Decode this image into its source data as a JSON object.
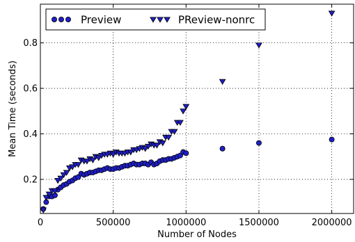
{
  "chart_data": {
    "type": "scatter",
    "xlabel": "Number of Nodes",
    "ylabel": "Mean Time (seconds)",
    "xlim": [
      0,
      2150000
    ],
    "ylim": [
      0.05,
      0.97
    ],
    "xticks": [
      0,
      500000,
      1000000,
      1500000,
      2000000
    ],
    "xtick_labels": [
      "0",
      "500000",
      "1000000",
      "1500000",
      "2000000"
    ],
    "yticks": [
      0.2,
      0.4,
      0.6,
      0.8
    ],
    "ytick_labels": [
      "0.2",
      "0.4",
      "0.6",
      "0.8"
    ],
    "grid": "dotted",
    "legend_placement": "top-left",
    "series": [
      {
        "name": "Preview",
        "marker": "circle",
        "color": "#1f1fc8",
        "x": [
          20000,
          40000,
          60000,
          80000,
          100000,
          120000,
          140000,
          160000,
          180000,
          200000,
          220000,
          240000,
          260000,
          280000,
          300000,
          320000,
          340000,
          360000,
          380000,
          400000,
          420000,
          440000,
          460000,
          480000,
          500000,
          520000,
          540000,
          560000,
          580000,
          600000,
          620000,
          640000,
          660000,
          680000,
          700000,
          720000,
          740000,
          760000,
          780000,
          800000,
          820000,
          840000,
          860000,
          880000,
          900000,
          920000,
          940000,
          960000,
          980000,
          1000000,
          1250000,
          1500000,
          2000000
        ],
        "y": [
          0.07,
          0.1,
          0.125,
          0.125,
          0.13,
          0.155,
          0.165,
          0.175,
          0.18,
          0.19,
          0.195,
          0.205,
          0.21,
          0.225,
          0.22,
          0.225,
          0.23,
          0.23,
          0.235,
          0.24,
          0.24,
          0.245,
          0.25,
          0.245,
          0.245,
          0.25,
          0.25,
          0.255,
          0.26,
          0.26,
          0.265,
          0.27,
          0.265,
          0.265,
          0.27,
          0.27,
          0.265,
          0.275,
          0.265,
          0.27,
          0.28,
          0.285,
          0.285,
          0.29,
          0.29,
          0.295,
          0.3,
          0.305,
          0.32,
          0.315,
          0.335,
          0.36,
          0.375
        ]
      },
      {
        "name": "PReview-nonrc",
        "marker": "triangle-down",
        "color": "#1f1fc8",
        "x": [
          20000,
          40000,
          60000,
          80000,
          100000,
          120000,
          140000,
          160000,
          180000,
          200000,
          220000,
          240000,
          260000,
          280000,
          300000,
          320000,
          340000,
          360000,
          380000,
          400000,
          420000,
          440000,
          460000,
          480000,
          500000,
          520000,
          540000,
          560000,
          580000,
          600000,
          620000,
          640000,
          660000,
          680000,
          700000,
          720000,
          740000,
          760000,
          780000,
          800000,
          820000,
          840000,
          860000,
          880000,
          900000,
          920000,
          940000,
          960000,
          980000,
          1000000,
          1250000,
          1500000,
          2000000
        ],
        "y": [
          0.065,
          0.12,
          0.135,
          0.15,
          0.15,
          0.195,
          0.205,
          0.22,
          0.23,
          0.25,
          0.255,
          0.265,
          0.265,
          0.285,
          0.28,
          0.28,
          0.29,
          0.285,
          0.3,
          0.295,
          0.305,
          0.31,
          0.31,
          0.315,
          0.31,
          0.32,
          0.315,
          0.315,
          0.315,
          0.32,
          0.32,
          0.33,
          0.33,
          0.335,
          0.34,
          0.335,
          0.345,
          0.355,
          0.35,
          0.35,
          0.365,
          0.36,
          0.385,
          0.385,
          0.41,
          0.41,
          0.45,
          0.45,
          0.5,
          0.52,
          0.63,
          0.79,
          0.93
        ]
      }
    ]
  }
}
